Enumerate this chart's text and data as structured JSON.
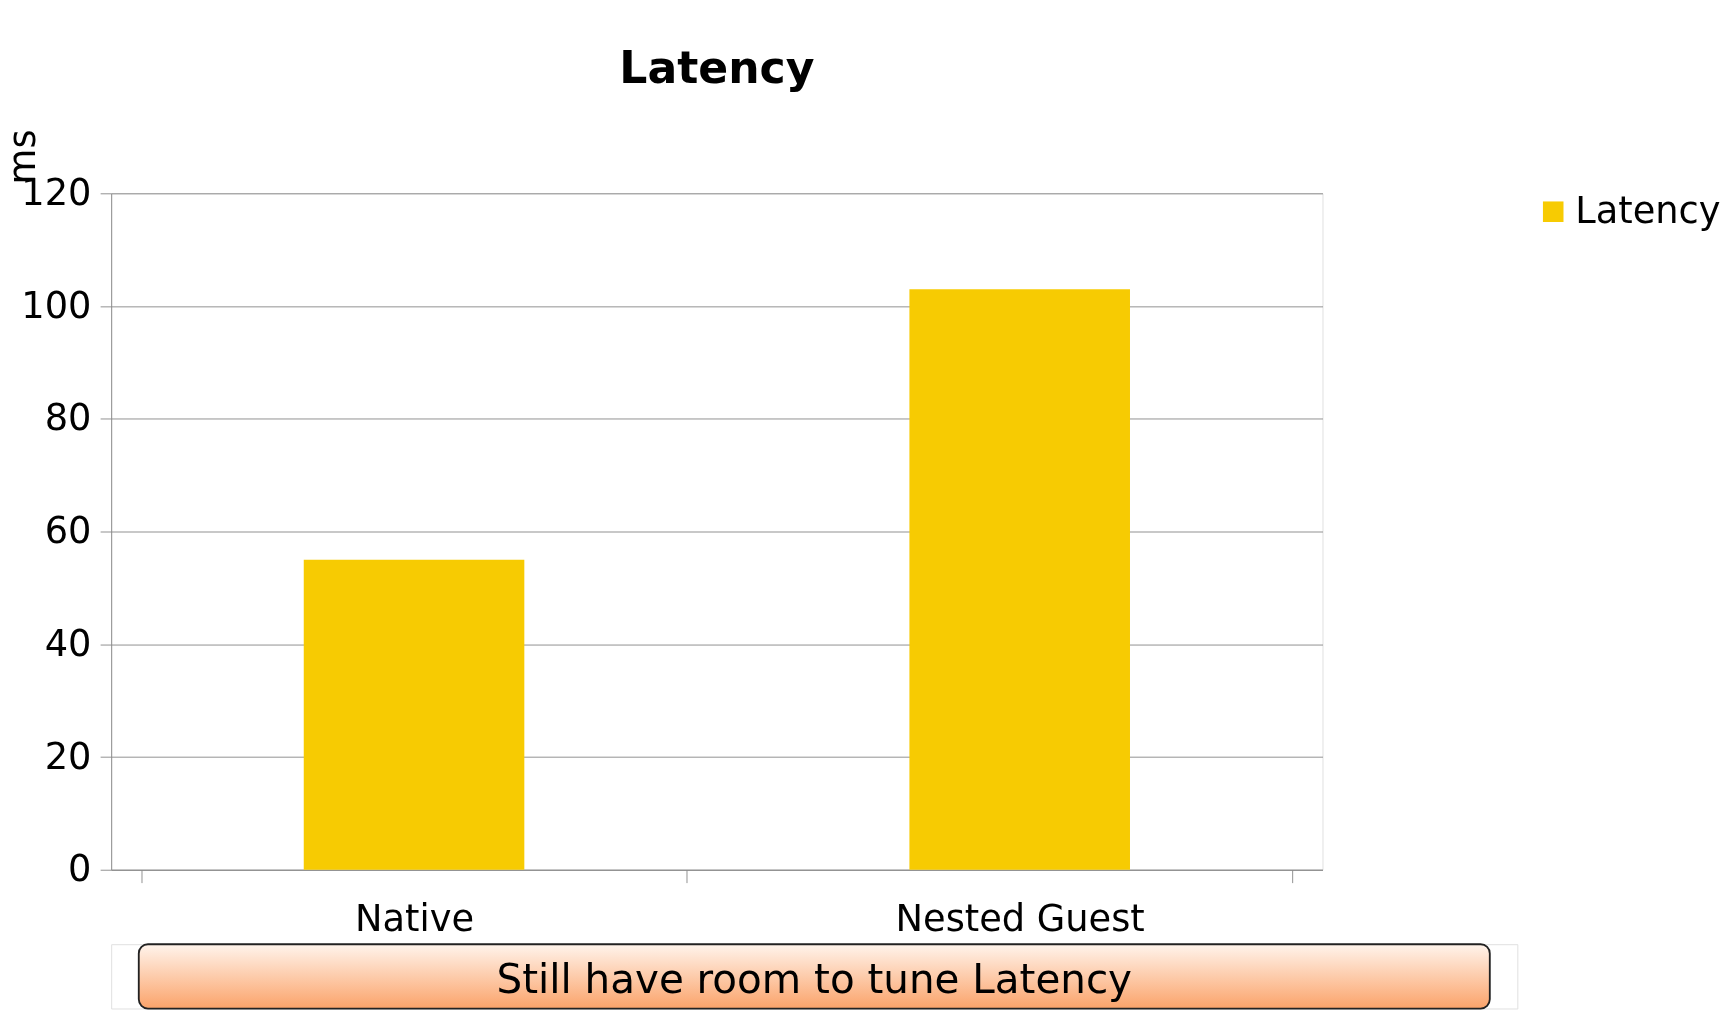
{
  "chart_data": {
    "type": "bar",
    "title": "Latency",
    "ylabel": "ms",
    "categories": [
      "Native",
      "Nested Guest"
    ],
    "series": [
      {
        "name": "Latency",
        "color": "#f7cb02",
        "values": [
          55,
          103
        ]
      }
    ],
    "ylim": [
      0,
      120
    ],
    "yticks": [
      0,
      20,
      40,
      60,
      80,
      100,
      120
    ],
    "grid": "y",
    "legend": "right",
    "annotations": [
      "Still have room to tune Latency"
    ]
  }
}
